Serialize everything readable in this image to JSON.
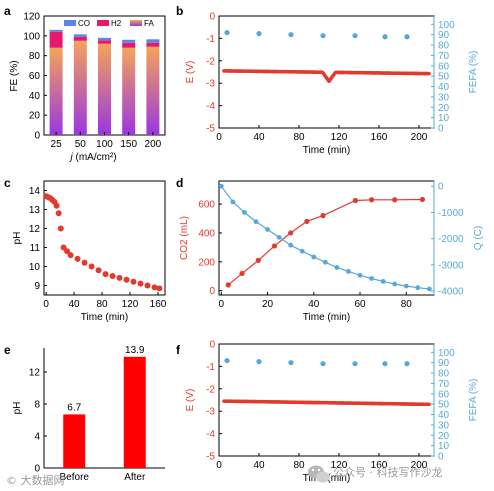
{
  "colors": {
    "red": "#e23a2e",
    "blue": "#56a9d6",
    "purple_top": "#9b36e0",
    "orange": "#f4a35a",
    "magenta": "#e6196e",
    "blue_legend": "#5b86e5",
    "axis": "#000000"
  },
  "watermark": {
    "left": "© 大数据网",
    "right": "公众号 · 科技写作沙龙"
  },
  "chart_data": [
    {
      "panel": "a",
      "type": "bar",
      "stacked": true,
      "categories": [
        "25",
        "50",
        "100",
        "150",
        "200"
      ],
      "series": [
        {
          "name": "FA",
          "values": [
            88,
            95,
            92,
            88,
            89
          ]
        },
        {
          "name": "H2",
          "values": [
            16,
            4,
            3.5,
            5,
            4
          ]
        },
        {
          "name": "CO",
          "values": [
            2,
            2.5,
            2.5,
            3,
            3.5
          ]
        }
      ],
      "xlabel_prefix": "j",
      "xlabel": " (mA/cm²)",
      "ylabel": "FE (%)",
      "ylim": [
        0,
        120
      ],
      "yticks": [
        0,
        20,
        40,
        60,
        80,
        100,
        120
      ],
      "legend": [
        "CO",
        "H2",
        "FA"
      ],
      "legend_position": "top"
    },
    {
      "panel": "b",
      "type": "scatter",
      "xlabel": "Time (min)",
      "xlim": [
        0,
        215
      ],
      "xticks": [
        0,
        40,
        80,
        120,
        160,
        200
      ],
      "left_axis": {
        "label": "E (V)",
        "ylim": [
          -5,
          0
        ],
        "yticks": [
          0,
          -1,
          -2,
          -3,
          -4,
          -5
        ]
      },
      "right_axis": {
        "label": "FEFA (%)",
        "ylim": [
          0,
          108
        ],
        "yticks": [
          0,
          10,
          20,
          30,
          40,
          50,
          60,
          70,
          80,
          90,
          100
        ]
      },
      "series": [
        {
          "axis": "left",
          "x_start": 5,
          "x_end": 210,
          "step": 1,
          "y": -2.45,
          "slope_per_min": -0.0006,
          "dip": {
            "x": [
              104,
              117
            ],
            "min_x": 110,
            "min_y": -2.85
          }
        },
        {
          "axis": "right",
          "x": [
            8,
            40,
            72,
            104,
            136,
            166,
            188
          ],
          "y": [
            92,
            91,
            90,
            89,
            89,
            88,
            88
          ]
        }
      ]
    },
    {
      "panel": "c",
      "type": "scatter",
      "xlabel": "Time (min)",
      "ylabel": "pH",
      "xlim": [
        -3,
        170
      ],
      "ylim": [
        8.5,
        14.5
      ],
      "xticks": [
        0,
        40,
        80,
        120,
        160
      ],
      "yticks": [
        9,
        10,
        11,
        12,
        13,
        14
      ],
      "x": [
        0,
        3,
        6,
        9,
        12,
        15,
        18,
        21,
        25,
        30,
        35,
        45,
        55,
        65,
        75,
        85,
        95,
        105,
        115,
        125,
        135,
        145,
        155,
        162
      ],
      "y": [
        13.7,
        13.65,
        13.6,
        13.5,
        13.4,
        13.2,
        12.8,
        12.0,
        11.0,
        10.8,
        10.6,
        10.4,
        10.2,
        10.0,
        9.8,
        9.6,
        9.5,
        9.4,
        9.3,
        9.2,
        9.1,
        9.0,
        8.9,
        8.85
      ]
    },
    {
      "panel": "d",
      "type": "line",
      "xlabel": "Time (min)",
      "xlim": [
        -1,
        92
      ],
      "xticks": [
        0,
        20,
        40,
        60,
        80
      ],
      "left_axis": {
        "label": "CO2 (mL)",
        "ylim": [
          -30,
          760
        ],
        "yticks": [
          0,
          200,
          400,
          600
        ]
      },
      "right_axis": {
        "label": "Q (C)",
        "ylim": [
          -4150,
          200
        ],
        "yticks": [
          0,
          -1000,
          -2000,
          -3000,
          -4000
        ]
      },
      "series": [
        {
          "axis": "left",
          "name": "CO2",
          "x": [
            3,
            9,
            16,
            23,
            30,
            37,
            44,
            58,
            65,
            75,
            87
          ],
          "y": [
            40,
            120,
            210,
            310,
            400,
            480,
            520,
            625,
            630,
            630,
            632
          ]
        },
        {
          "axis": "right",
          "name": "Q",
          "x": [
            0,
            5,
            10,
            15,
            20,
            25,
            30,
            35,
            40,
            45,
            50,
            55,
            60,
            65,
            70,
            75,
            80,
            85,
            90
          ],
          "y": [
            0,
            -600,
            -1000,
            -1350,
            -1650,
            -1950,
            -2250,
            -2480,
            -2700,
            -2900,
            -3100,
            -3250,
            -3400,
            -3520,
            -3630,
            -3730,
            -3810,
            -3870,
            -3920
          ]
        }
      ]
    },
    {
      "panel": "e",
      "type": "bar",
      "categories": [
        "Before",
        "After"
      ],
      "values": [
        6.7,
        13.9
      ],
      "data_labels": [
        "6.7",
        "13.9"
      ],
      "ylabel": "pH",
      "ylim": [
        0,
        15
      ],
      "yticks": [
        0,
        4,
        8,
        12
      ]
    },
    {
      "panel": "f",
      "type": "scatter",
      "xlabel": "Time (min)",
      "xlim": [
        0,
        215
      ],
      "xticks": [
        0,
        40,
        80,
        120,
        160,
        200
      ],
      "left_axis": {
        "label": "E (V)",
        "ylim": [
          -5,
          0
        ],
        "yticks": [
          0,
          -1,
          -2,
          -3,
          -4,
          -5
        ]
      },
      "right_axis": {
        "label": "FEFA (%)",
        "ylim": [
          0,
          108
        ],
        "yticks": [
          0,
          10,
          20,
          30,
          40,
          50,
          60,
          70,
          80,
          90,
          100
        ]
      },
      "series": [
        {
          "axis": "left",
          "x_start": 5,
          "x_end": 210,
          "step": 1,
          "y": -2.55,
          "slope_per_min": -0.0007
        },
        {
          "axis": "right",
          "x": [
            8,
            40,
            72,
            104,
            136,
            166,
            188
          ],
          "y": [
            92,
            91,
            90,
            89,
            89,
            89,
            89
          ]
        }
      ]
    }
  ]
}
